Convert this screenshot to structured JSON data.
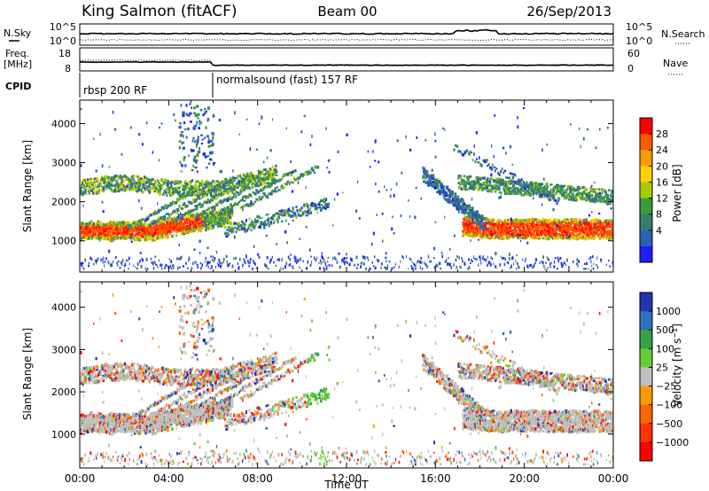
{
  "header": {
    "station": "King Salmon (fitACF)",
    "beam": "Beam 00",
    "date": "26/Sep/2013"
  },
  "noise_panel": {
    "left_label": "N.Sky",
    "right_label": "N.Search",
    "left_ticks": [
      "10^5",
      "10^0"
    ],
    "right_ticks": [
      "10^5",
      "10^0"
    ]
  },
  "freq_panel": {
    "left_label_line1": "Freq.",
    "left_label_line2": "[MHz]",
    "right_label": "Nave",
    "left_ticks": [
      "18",
      "8"
    ],
    "right_ticks": [
      "60",
      "0"
    ]
  },
  "cpid_panel": {
    "label": "CPID",
    "segments": [
      {
        "start_hour": 0,
        "end_hour": 6,
        "text": "rbsp 200 RF"
      },
      {
        "start_hour": 6,
        "end_hour": 24,
        "text": "normalsound (fast) 157 RF"
      }
    ]
  },
  "chart_data": [
    {
      "type": "heatmap",
      "name": "power",
      "ylabel": "Slant Range [km]",
      "xlim_hours": [
        0,
        24
      ],
      "ylim": [
        200,
        4600
      ],
      "yticks": [
        1000,
        2000,
        3000,
        4000
      ],
      "colorbar": {
        "label": "Power [dB]",
        "ticks": [
          "28",
          "24",
          "20",
          "16",
          "12",
          "8",
          "4"
        ],
        "colors": [
          "#ff0000",
          "#ff5a00",
          "#ff9900",
          "#ffd000",
          "#a6cc00",
          "#3c9a3c",
          "#387c6c",
          "#2e60b8",
          "#1f1fff"
        ]
      },
      "bands": [
        {
          "t0": 0,
          "t1": 6.2,
          "r0": 1150,
          "r1": 1600,
          "level": 0
        },
        {
          "t0": 0,
          "t1": 8.5,
          "r0": 2250,
          "r1": 2900,
          "level": 3
        },
        {
          "t0": 17.3,
          "t1": 24,
          "r0": 1000,
          "r1": 1500,
          "level": 0
        },
        {
          "t0": 16.5,
          "t1": 24,
          "r0": 1800,
          "r1": 2500,
          "level": 5
        }
      ]
    },
    {
      "type": "heatmap",
      "name": "velocity",
      "ylabel": "Slant Range [km]",
      "xlabel": "Time UT",
      "xlim_hours": [
        0,
        24
      ],
      "ylim": [
        200,
        4600
      ],
      "yticks": [
        1000,
        2000,
        3000,
        4000
      ],
      "xticks": [
        "00:00",
        "04:00",
        "08:00",
        "12:00",
        "16:00",
        "20:00",
        "00:00"
      ],
      "colorbar": {
        "label": "Velocity [m s⁻¹]",
        "ticks": [
          "1000",
          "500",
          "100",
          "25",
          "−25",
          "−100",
          "−500",
          "−1000"
        ],
        "colors": [
          "#2333b0",
          "#2f6fbf",
          "#3aa04a",
          "#66cc33",
          "#bfbfbf",
          "#ff9900",
          "#ff6600",
          "#ff3300",
          "#ff0000"
        ]
      }
    }
  ]
}
